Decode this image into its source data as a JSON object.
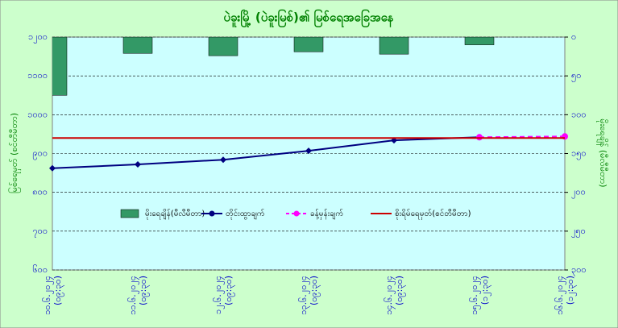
{
  "chart_data": {
    "type": "bar-line",
    "title": "ပဲခူးမြို့ (ပဲခူးမြစ်)၏ မြစ်ရေအခြေအနေ",
    "y_label": "မြစ်ရေမှတ် (စင်တီမီတာ)",
    "y2_label": "မိုးရေချိန် (မီလီမီတာ)",
    "categories": [
      "၁၀.၆.၂၀၂၄ (၀၉:၃၀)",
      "၁၁.၆.၂၀၂၄ (၀၉:၃၀)",
      "၁၂.၆.၂၀၂၄ (၀၉:၃၀)",
      "၁၃.၆.၂၀၂၄ (၀၉:၃၀)",
      "၁၄.၆.၂၀၂၄ (၀၉:၃၀)",
      "၁၅.၆.၂၀၂၄ (၁၂:၃၀)",
      "၁၆.၆.၂၀၂၄ (၁၂:၃၀)"
    ],
    "series": [
      {
        "name": "မိုးရေချိန်(မီလီမီတာ)",
        "kind": "bar",
        "axis": "y2",
        "color": "#339966",
        "values": [
          75,
          21,
          24,
          19,
          22,
          10,
          0
        ]
      },
      {
        "name": "တိုင်းထွာချက်",
        "kind": "line",
        "color": "#000080",
        "marker": "diamond",
        "values": [
          862,
          872,
          884,
          907,
          934,
          942,
          null
        ]
      },
      {
        "name": "ခန့်မှန်းချက်",
        "kind": "line",
        "color": "#ff00ff",
        "marker": "circle",
        "dashed": true,
        "values": [
          null,
          null,
          null,
          null,
          null,
          942,
          944
        ]
      },
      {
        "name": "စိုးရိမ်ရေမှတ်(စင်တီမီတာ)",
        "kind": "line",
        "color": "#cc0000",
        "values": [
          940,
          940,
          940,
          940,
          940,
          940,
          940
        ]
      }
    ],
    "ylim": [
      600,
      1200
    ],
    "yticks": [
      {
        "value": 600,
        "label": "၆၀၀"
      },
      {
        "value": 700,
        "label": "၇၀၀"
      },
      {
        "value": 800,
        "label": "၈၀၀"
      },
      {
        "value": 900,
        "label": "၉၀၀"
      },
      {
        "value": 1000,
        "label": "၁၀၀၀"
      },
      {
        "value": 1100,
        "label": "၁၁၀၀"
      },
      {
        "value": 1200,
        "label": "၁၂၀၀"
      }
    ],
    "y2lim": [
      0,
      300
    ],
    "y2_inverted": true,
    "y2ticks": [
      {
        "value": 0,
        "label": "၀"
      },
      {
        "value": 50,
        "label": "၅၀"
      },
      {
        "value": 100,
        "label": "၁၀၀"
      },
      {
        "value": 150,
        "label": "၁၅၀"
      },
      {
        "value": 200,
        "label": "၂၀၀"
      },
      {
        "value": 250,
        "label": "၂၅၀"
      },
      {
        "value": 300,
        "label": "၃၀၀"
      }
    ],
    "grid": true,
    "legend": "center"
  }
}
